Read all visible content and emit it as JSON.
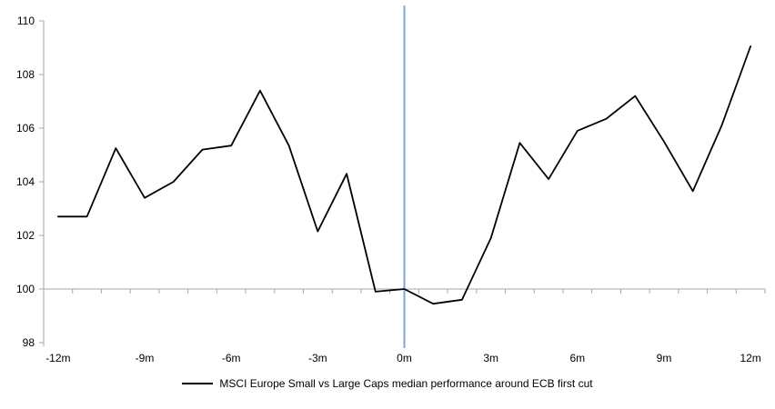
{
  "chart_data": {
    "type": "line",
    "title": "",
    "xlabel": "",
    "ylabel": "",
    "x_months": [
      -12,
      -11,
      -10,
      -9,
      -8,
      -7,
      -6,
      -5,
      -4,
      -3,
      -2,
      -1,
      0,
      1,
      2,
      3,
      4,
      5,
      6,
      7,
      8,
      9,
      10,
      11,
      12
    ],
    "x_tick_months": [
      -12,
      -9,
      -6,
      -3,
      0,
      3,
      6,
      9,
      12
    ],
    "x_tick_labels": [
      "-12m",
      "-9m",
      "-6m",
      "-3m",
      "0m",
      "3m",
      "6m",
      "9m",
      "12m"
    ],
    "y_ticks": [
      110,
      108,
      106,
      104,
      102,
      100,
      98
    ],
    "ylim": [
      98,
      110
    ],
    "baseline_value": 100,
    "event_line_month": 0,
    "grid": false,
    "legend_position": "bottom",
    "series": [
      {
        "name": "MSCI Europe Small vs Large Caps median performance around ECB first cut",
        "color": "#000000",
        "values": [
          102.7,
          102.7,
          105.25,
          103.4,
          104.0,
          105.2,
          105.35,
          107.4,
          105.35,
          102.15,
          104.3,
          99.9,
          100.0,
          99.45,
          99.6,
          101.9,
          105.45,
          104.1,
          105.9,
          106.35,
          107.2,
          105.5,
          103.65,
          106.1,
          109.05
        ]
      }
    ],
    "colors": {
      "event_line": "#7EA6D4",
      "axis_line": "#A6A6A6",
      "series": "#000000",
      "text": "#000000",
      "background": "#FFFFFF"
    }
  }
}
